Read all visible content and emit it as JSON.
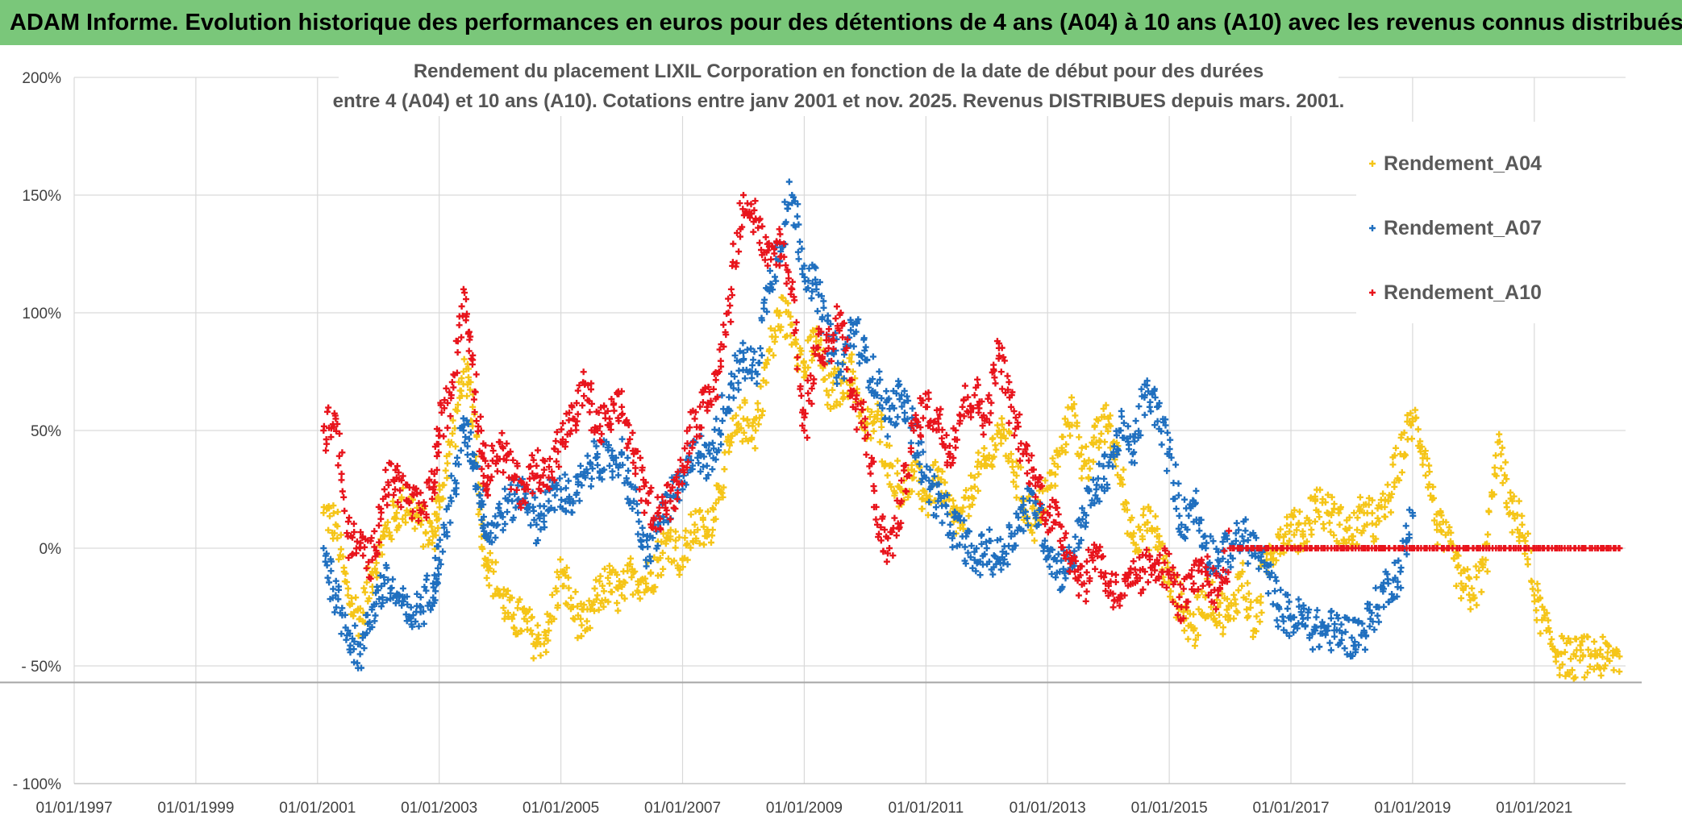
{
  "banner": {
    "title": "ADAM Informe. Evolution historique des performances en euros pour des détentions de 4 ans (A04) à 10 ans (A10) avec les revenus connus distribués"
  },
  "chart_data": {
    "type": "scatter",
    "title_line1": "Rendement du placement LIXIL Corporation en fonction de la date de début pour des durées",
    "title_line2": "entre 4 (A04) et 10 ans (A10). Cotations entre janv 2001 et nov. 2025. Revenus DISTRIBUES depuis mars. 2001.",
    "xlabel": "",
    "ylabel": "",
    "xlim": [
      1997.0,
      2022.5
    ],
    "ylim": [
      -100,
      200
    ],
    "x_ticks": [
      1997,
      1999,
      2001,
      2003,
      2005,
      2007,
      2009,
      2011,
      2013,
      2015,
      2017,
      2019,
      2021
    ],
    "x_tick_labels": [
      "01/01/1997",
      "01/01/1999",
      "01/01/2001",
      "01/01/2003",
      "01/01/2005",
      "01/01/2007",
      "01/01/2009",
      "01/01/2011",
      "01/01/2013",
      "01/01/2015",
      "01/01/2017",
      "01/01/2019",
      "01/01/2021"
    ],
    "y_ticks": [
      -100,
      -50,
      0,
      50,
      100,
      150,
      200
    ],
    "y_tick_labels": [
      "- 100%",
      "- 50%",
      "0%",
      "50%",
      "100%",
      "150%",
      "200%"
    ],
    "grid": true,
    "legend_position": "top-right",
    "series": [
      {
        "name": "Rendement_A04",
        "color": "#f5c518",
        "points": [
          [
            2001.1,
            15
          ],
          [
            2001.3,
            10
          ],
          [
            2001.5,
            -20
          ],
          [
            2001.7,
            -30
          ],
          [
            2001.9,
            -10
          ],
          [
            2002.1,
            5
          ],
          [
            2002.3,
            15
          ],
          [
            2002.5,
            20
          ],
          [
            2002.7,
            10
          ],
          [
            2002.9,
            5
          ],
          [
            2003.0,
            20
          ],
          [
            2003.2,
            45
          ],
          [
            2003.4,
            75
          ],
          [
            2003.55,
            60
          ],
          [
            2003.7,
            10
          ],
          [
            2003.8,
            -5
          ],
          [
            2004.0,
            -20
          ],
          [
            2004.2,
            -30
          ],
          [
            2004.4,
            -30
          ],
          [
            2004.6,
            -40
          ],
          [
            2004.8,
            -35
          ],
          [
            2005.0,
            -10
          ],
          [
            2005.2,
            -25
          ],
          [
            2005.4,
            -35
          ],
          [
            2005.6,
            -20
          ],
          [
            2005.8,
            -15
          ],
          [
            2006.0,
            -20
          ],
          [
            2006.2,
            -10
          ],
          [
            2006.4,
            -15
          ],
          [
            2006.6,
            -5
          ],
          [
            2006.8,
            5
          ],
          [
            2007.0,
            -5
          ],
          [
            2007.2,
            10
          ],
          [
            2007.4,
            5
          ],
          [
            2007.6,
            25
          ],
          [
            2007.8,
            45
          ],
          [
            2008.0,
            55
          ],
          [
            2008.2,
            50
          ],
          [
            2008.4,
            80
          ],
          [
            2008.6,
            100
          ],
          [
            2008.8,
            95
          ],
          [
            2009.0,
            75
          ],
          [
            2009.2,
            90
          ],
          [
            2009.4,
            65
          ],
          [
            2009.6,
            70
          ],
          [
            2009.8,
            75
          ],
          [
            2010.0,
            50
          ],
          [
            2010.2,
            55
          ],
          [
            2010.4,
            35
          ],
          [
            2010.6,
            25
          ],
          [
            2010.8,
            30
          ],
          [
            2011.0,
            20
          ],
          [
            2011.2,
            30
          ],
          [
            2011.4,
            15
          ],
          [
            2011.6,
            10
          ],
          [
            2011.8,
            30
          ],
          [
            2012.0,
            35
          ],
          [
            2012.2,
            50
          ],
          [
            2012.4,
            40
          ],
          [
            2012.6,
            20
          ],
          [
            2012.8,
            10
          ],
          [
            2013.0,
            25
          ],
          [
            2013.2,
            40
          ],
          [
            2013.4,
            60
          ],
          [
            2013.6,
            35
          ],
          [
            2013.8,
            45
          ],
          [
            2014.0,
            55
          ],
          [
            2014.2,
            30
          ],
          [
            2014.4,
            5
          ],
          [
            2014.6,
            10
          ],
          [
            2014.8,
            5
          ],
          [
            2015.0,
            -15
          ],
          [
            2015.2,
            -25
          ],
          [
            2015.4,
            -35
          ],
          [
            2015.6,
            -20
          ],
          [
            2015.8,
            -25
          ],
          [
            2016.0,
            -30
          ],
          [
            2016.2,
            -10
          ],
          [
            2016.4,
            -35
          ],
          [
            2016.6,
            -5
          ],
          [
            2016.8,
            5
          ],
          [
            2017.0,
            10
          ],
          [
            2017.2,
            5
          ],
          [
            2017.4,
            20
          ],
          [
            2017.6,
            15
          ],
          [
            2017.8,
            10
          ],
          [
            2018.0,
            5
          ],
          [
            2018.2,
            15
          ],
          [
            2018.4,
            10
          ],
          [
            2018.6,
            20
          ],
          [
            2018.8,
            40
          ],
          [
            2019.0,
            55
          ],
          [
            2019.2,
            40
          ],
          [
            2019.4,
            10
          ],
          [
            2019.6,
            0
          ],
          [
            2019.8,
            -15
          ],
          [
            2020.0,
            -20
          ],
          [
            2020.2,
            -5
          ],
          [
            2020.4,
            45
          ],
          [
            2020.6,
            15
          ],
          [
            2020.8,
            10
          ],
          [
            2021.0,
            -20
          ],
          [
            2021.2,
            -35
          ],
          [
            2021.4,
            -45
          ],
          [
            2021.6,
            -47
          ],
          [
            2021.8,
            -46
          ],
          [
            2022.0,
            -46
          ],
          [
            2022.2,
            -47
          ],
          [
            2022.4,
            -46
          ]
        ]
      },
      {
        "name": "Rendement_A07",
        "color": "#1f6fbf",
        "points": [
          [
            2001.1,
            0
          ],
          [
            2001.3,
            -20
          ],
          [
            2001.5,
            -35
          ],
          [
            2001.7,
            -45
          ],
          [
            2001.9,
            -25
          ],
          [
            2002.1,
            -15
          ],
          [
            2002.3,
            -20
          ],
          [
            2002.5,
            -30
          ],
          [
            2002.7,
            -25
          ],
          [
            2002.9,
            -15
          ],
          [
            2003.0,
            -5
          ],
          [
            2003.2,
            20
          ],
          [
            2003.4,
            50
          ],
          [
            2003.55,
            40
          ],
          [
            2003.7,
            20
          ],
          [
            2003.8,
            5
          ],
          [
            2004.0,
            15
          ],
          [
            2004.2,
            20
          ],
          [
            2004.4,
            25
          ],
          [
            2004.6,
            10
          ],
          [
            2004.8,
            20
          ],
          [
            2005.0,
            25
          ],
          [
            2005.2,
            20
          ],
          [
            2005.4,
            30
          ],
          [
            2005.6,
            40
          ],
          [
            2005.8,
            35
          ],
          [
            2006.0,
            40
          ],
          [
            2006.2,
            20
          ],
          [
            2006.4,
            -5
          ],
          [
            2006.6,
            10
          ],
          [
            2006.8,
            20
          ],
          [
            2007.0,
            25
          ],
          [
            2007.2,
            45
          ],
          [
            2007.4,
            35
          ],
          [
            2007.6,
            50
          ],
          [
            2007.8,
            70
          ],
          [
            2008.0,
            80
          ],
          [
            2008.2,
            75
          ],
          [
            2008.4,
            110
          ],
          [
            2008.6,
            130
          ],
          [
            2008.8,
            150
          ],
          [
            2009.0,
            120
          ],
          [
            2009.2,
            110
          ],
          [
            2009.4,
            90
          ],
          [
            2009.6,
            75
          ],
          [
            2009.8,
            95
          ],
          [
            2010.0,
            80
          ],
          [
            2010.2,
            70
          ],
          [
            2010.4,
            55
          ],
          [
            2010.6,
            65
          ],
          [
            2010.8,
            50
          ],
          [
            2011.0,
            30
          ],
          [
            2011.2,
            20
          ],
          [
            2011.4,
            10
          ],
          [
            2011.6,
            5
          ],
          [
            2011.8,
            -5
          ],
          [
            2012.0,
            0
          ],
          [
            2012.2,
            -5
          ],
          [
            2012.4,
            5
          ],
          [
            2012.6,
            15
          ],
          [
            2012.8,
            20
          ],
          [
            2013.0,
            0
          ],
          [
            2013.2,
            -10
          ],
          [
            2013.4,
            -5
          ],
          [
            2013.6,
            15
          ],
          [
            2013.8,
            25
          ],
          [
            2014.0,
            35
          ],
          [
            2014.2,
            50
          ],
          [
            2014.4,
            40
          ],
          [
            2014.6,
            65
          ],
          [
            2014.8,
            60
          ],
          [
            2015.0,
            40
          ],
          [
            2015.2,
            10
          ],
          [
            2015.4,
            20
          ],
          [
            2015.6,
            0
          ],
          [
            2015.8,
            -5
          ],
          [
            2016.0,
            0
          ],
          [
            2016.2,
            5
          ],
          [
            2016.4,
            0
          ],
          [
            2016.6,
            -10
          ],
          [
            2016.8,
            -25
          ],
          [
            2017.0,
            -30
          ],
          [
            2017.2,
            -30
          ],
          [
            2017.4,
            -35
          ],
          [
            2017.6,
            -35
          ],
          [
            2017.8,
            -35
          ],
          [
            2018.0,
            -38
          ],
          [
            2018.2,
            -35
          ],
          [
            2018.4,
            -25
          ],
          [
            2018.6,
            -15
          ],
          [
            2018.8,
            -10
          ],
          [
            2019.0,
            15
          ]
        ]
      },
      {
        "name": "Rendement_A10",
        "color": "#e8141c",
        "points": [
          [
            2001.1,
            50
          ],
          [
            2001.3,
            55
          ],
          [
            2001.5,
            5
          ],
          [
            2001.7,
            0
          ],
          [
            2001.9,
            -5
          ],
          [
            2002.1,
            25
          ],
          [
            2002.3,
            30
          ],
          [
            2002.5,
            20
          ],
          [
            2002.7,
            15
          ],
          [
            2002.9,
            25
          ],
          [
            2003.0,
            50
          ],
          [
            2003.2,
            65
          ],
          [
            2003.4,
            110
          ],
          [
            2003.55,
            80
          ],
          [
            2003.7,
            40
          ],
          [
            2003.8,
            30
          ],
          [
            2004.0,
            45
          ],
          [
            2004.2,
            30
          ],
          [
            2004.4,
            25
          ],
          [
            2004.6,
            35
          ],
          [
            2004.8,
            30
          ],
          [
            2005.0,
            45
          ],
          [
            2005.2,
            55
          ],
          [
            2005.4,
            70
          ],
          [
            2005.6,
            50
          ],
          [
            2005.8,
            55
          ],
          [
            2006.0,
            60
          ],
          [
            2006.2,
            40
          ],
          [
            2006.4,
            20
          ],
          [
            2006.6,
            15
          ],
          [
            2006.8,
            20
          ],
          [
            2007.0,
            35
          ],
          [
            2007.2,
            55
          ],
          [
            2007.4,
            60
          ],
          [
            2007.6,
            75
          ],
          [
            2007.8,
            110
          ],
          [
            2008.0,
            150
          ],
          [
            2008.2,
            140
          ],
          [
            2008.4,
            120
          ],
          [
            2008.6,
            130
          ],
          [
            2008.8,
            110
          ],
          [
            2009.0,
            50
          ],
          [
            2009.2,
            85
          ],
          [
            2009.4,
            85
          ],
          [
            2009.6,
            100
          ],
          [
            2009.8,
            60
          ],
          [
            2010.0,
            55
          ],
          [
            2010.2,
            10
          ],
          [
            2010.4,
            0
          ],
          [
            2010.6,
            20
          ],
          [
            2010.8,
            50
          ],
          [
            2011.0,
            60
          ],
          [
            2011.2,
            55
          ],
          [
            2011.4,
            40
          ],
          [
            2011.6,
            60
          ],
          [
            2011.8,
            65
          ],
          [
            2012.0,
            55
          ],
          [
            2012.2,
            85
          ],
          [
            2012.4,
            60
          ],
          [
            2012.6,
            40
          ],
          [
            2012.8,
            30
          ],
          [
            2013.0,
            15
          ],
          [
            2013.2,
            10
          ],
          [
            2013.4,
            -5
          ],
          [
            2013.6,
            -15
          ],
          [
            2013.8,
            0
          ],
          [
            2014.0,
            -15
          ],
          [
            2014.2,
            -20
          ],
          [
            2014.4,
            -15
          ],
          [
            2014.6,
            -10
          ],
          [
            2014.8,
            -5
          ],
          [
            2015.0,
            -10
          ],
          [
            2015.2,
            -25
          ],
          [
            2015.4,
            -15
          ],
          [
            2015.6,
            -10
          ],
          [
            2015.8,
            -20
          ],
          [
            2016.0,
            0
          ],
          [
            2016.5,
            0
          ],
          [
            2017.0,
            0
          ],
          [
            2017.5,
            0
          ],
          [
            2018.0,
            0
          ],
          [
            2018.5,
            0
          ],
          [
            2019.0,
            0
          ],
          [
            2019.5,
            0
          ],
          [
            2020.0,
            0
          ],
          [
            2020.5,
            0
          ],
          [
            2021.0,
            0
          ],
          [
            2021.5,
            0
          ],
          [
            2022.0,
            0
          ],
          [
            2022.4,
            0
          ]
        ]
      }
    ]
  }
}
